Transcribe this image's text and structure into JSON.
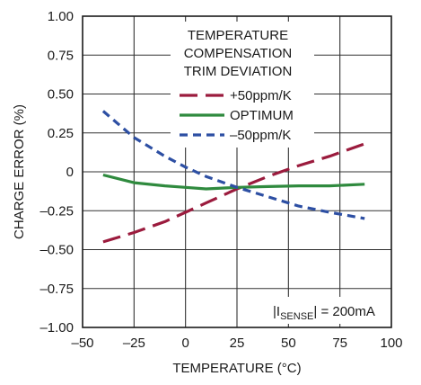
{
  "chart_data": {
    "type": "line",
    "xlabel": "TEMPERATURE (°C)",
    "ylabel": "CHARGE ERROR (%)",
    "xlim": [
      -50,
      100
    ],
    "ylim": [
      -1.0,
      1.0
    ],
    "x_ticks": [
      -50,
      -25,
      0,
      25,
      50,
      75,
      100
    ],
    "x_tick_labels": [
      "–50",
      "–25",
      "0",
      "25",
      "50",
      "75",
      "100"
    ],
    "y_ticks": [
      1.0,
      0.75,
      0.5,
      0.25,
      0,
      -0.25,
      -0.5,
      -0.75,
      -1.0
    ],
    "y_tick_labels": [
      "1.00",
      "0.75",
      "0.50",
      "0.25",
      "0",
      "–0.25",
      "–0.50",
      "–0.75",
      "–1.00"
    ],
    "grid": true,
    "legend": {
      "title_lines": [
        "TEMPERATURE",
        "COMPENSATION",
        "TRIM DEVIATION"
      ],
      "placement": "top-right"
    },
    "series": [
      {
        "name": "+50ppm/K",
        "color": "#9b1b3d",
        "dash": "long",
        "x": [
          -40,
          -25,
          -10,
          0,
          10,
          25,
          40,
          55,
          70,
          87
        ],
        "y": [
          -0.45,
          -0.39,
          -0.32,
          -0.26,
          -0.2,
          -0.11,
          -0.03,
          0.04,
          0.1,
          0.18
        ]
      },
      {
        "name": "OPTIMUM",
        "color": "#2f8a3e",
        "dash": "solid",
        "x": [
          -40,
          -25,
          -10,
          0,
          10,
          25,
          40,
          55,
          70,
          87
        ],
        "y": [
          -0.02,
          -0.07,
          -0.09,
          -0.1,
          -0.11,
          -0.1,
          -0.095,
          -0.09,
          -0.09,
          -0.08
        ]
      },
      {
        "name": "–50ppm/K",
        "color": "#2d4fa3",
        "dash": "short",
        "x": [
          -40,
          -25,
          -10,
          0,
          10,
          25,
          40,
          55,
          70,
          87
        ],
        "y": [
          0.39,
          0.22,
          0.1,
          0.03,
          -0.03,
          -0.1,
          -0.16,
          -0.22,
          -0.26,
          -0.3
        ]
      }
    ],
    "annotation": {
      "prefix": "|I",
      "subscript": "SENSE",
      "suffix": "| = 200mA"
    }
  }
}
